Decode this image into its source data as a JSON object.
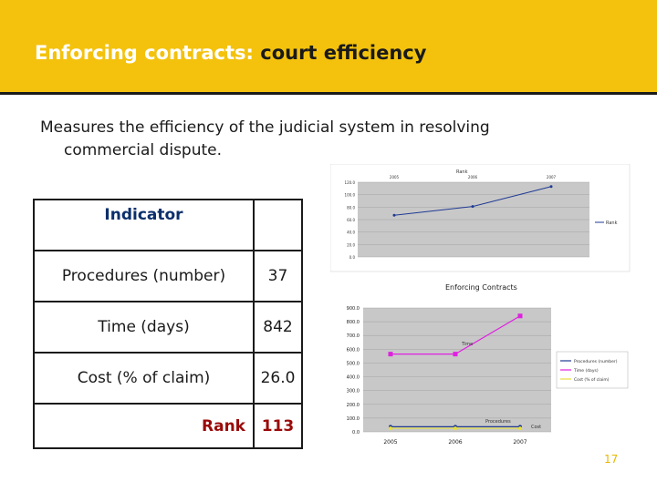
{
  "header": {
    "title_main": "Enforcing contracts:",
    "title_highlight": "court efficiency"
  },
  "description": {
    "line1": "Measures the efficiency of the judicial system in resolving",
    "line2": "commercial dispute."
  },
  "table": {
    "header": "Indicator",
    "rows": [
      {
        "label": "Procedures (number)",
        "value": "37"
      },
      {
        "label": "Time (days)",
        "value": "842"
      },
      {
        "label": "Cost (% of claim)",
        "value": "26.0"
      }
    ],
    "rank": {
      "label": "Rank",
      "value": "113"
    }
  },
  "chart_data": [
    {
      "type": "line",
      "title": "Rank",
      "categories": [
        "2005",
        "2006",
        "2007"
      ],
      "yticks": [
        "120.0",
        "100.0",
        "80.0",
        "60.0",
        "40.0",
        "20.0",
        "0.0"
      ],
      "ylim": [
        120,
        0
      ],
      "inverted": true,
      "series": [
        {
          "name": "Rank",
          "values": [
            67,
            81,
            113
          ],
          "color": "#1f3a93"
        }
      ],
      "legend": [
        "Rank"
      ]
    },
    {
      "type": "line",
      "title": "Enforcing Contracts",
      "categories": [
        "2005",
        "2006",
        "2007"
      ],
      "yticks": [
        "900.0",
        "800.0",
        "700.0",
        "600.0",
        "500.0",
        "400.0",
        "300.0",
        "200.0",
        "100.0",
        "0.0"
      ],
      "ylim": [
        0,
        900
      ],
      "series": [
        {
          "name": "Procedures (number)",
          "values": [
            37,
            37,
            37
          ],
          "color": "#1f3a93"
        },
        {
          "name": "Time (days)",
          "values": [
            565,
            565,
            842
          ],
          "color": "#e020e0"
        },
        {
          "name": "Cost (% of claim)",
          "values": [
            26,
            26,
            26
          ],
          "color": "#e8e040"
        }
      ],
      "annotations": [
        "Time",
        "Procedures",
        "Cost"
      ]
    }
  ],
  "page_number": "17"
}
